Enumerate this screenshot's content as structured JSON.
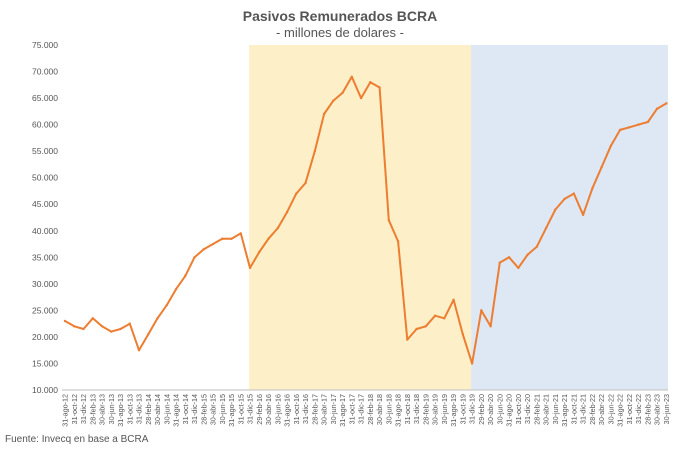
{
  "chart_data": {
    "type": "line",
    "title": "Pasivos Remunerados BCRA",
    "subtitle": "- millones de dolares -",
    "source": "Fuente: Invecq en base a BCRA",
    "ylim": [
      10000,
      75000
    ],
    "y_ticks": [
      "10.000",
      "15.000",
      "20.000",
      "25.000",
      "30.000",
      "35.000",
      "40.000",
      "45.000",
      "50.000",
      "55.000",
      "60.000",
      "65.000",
      "70.000",
      "75.000"
    ],
    "x_ticks": [
      "31-ago-12",
      "31-oct-12",
      "31-dic-12",
      "28-feb-13",
      "30-abr-13",
      "30-jun-13",
      "31-ago-13",
      "31-oct-13",
      "31-dic-13",
      "28-feb-14",
      "30-abr-14",
      "30-jun-14",
      "31-ago-14",
      "31-oct-14",
      "31-dic-14",
      "28-feb-15",
      "30-abr-15",
      "30-jun-15",
      "31-ago-15",
      "31-oct-15",
      "31-dic-15",
      "29-feb-16",
      "30-abr-16",
      "30-jun-16",
      "31-ago-16",
      "31-oct-16",
      "31-dic-16",
      "28-feb-17",
      "30-abr-17",
      "30-jun-17",
      "31-ago-17",
      "31-oct-17",
      "31-dic-17",
      "28-feb-18",
      "30-abr-18",
      "30-jun-18",
      "31-ago-18",
      "31-oct-18",
      "31-dic-18",
      "28-feb-19",
      "30-abr-19",
      "30-jun-19",
      "31-ago-19",
      "31-oct-19",
      "31-dic-19",
      "29-feb-20",
      "30-abr-20",
      "30-jun-20",
      "31-ago-20",
      "31-oct-20",
      "31-dic-20",
      "28-feb-21",
      "30-abr-21",
      "30-jun-21",
      "31-ago-21",
      "31-oct-21",
      "31-dic-21",
      "28-feb-22",
      "30-abr-22",
      "30-jun-22",
      "31-ago-22",
      "31-oct-22",
      "31-dic-22",
      "28-feb-23",
      "30-abr-23",
      "30-jun-23"
    ],
    "shaded_periods": [
      {
        "from": "31-dic-15",
        "to": "31-dic-19",
        "color": "#fdf0c8"
      },
      {
        "from": "31-dic-19",
        "to": "30-jun-23",
        "color": "#dde8f4"
      }
    ],
    "series": [
      {
        "color": "#ed7d31",
        "x": [
          "31-ago-12",
          "31-oct-12",
          "31-dic-12",
          "28-feb-13",
          "30-abr-13",
          "30-jun-13",
          "31-ago-13",
          "31-oct-13",
          "31-dic-13",
          "28-feb-14",
          "30-abr-14",
          "30-jun-14",
          "31-ago-14",
          "31-oct-14",
          "31-dic-14",
          "28-feb-15",
          "30-abr-15",
          "30-jun-15",
          "31-ago-15",
          "31-oct-15",
          "31-dic-15",
          "29-feb-16",
          "30-abr-16",
          "30-jun-16",
          "31-ago-16",
          "31-oct-16",
          "31-dic-16",
          "28-feb-17",
          "30-abr-17",
          "30-jun-17",
          "31-ago-17",
          "31-oct-17",
          "31-dic-17",
          "28-feb-18",
          "30-abr-18",
          "30-jun-18",
          "31-ago-18",
          "31-oct-18",
          "31-dic-18",
          "28-feb-19",
          "30-abr-19",
          "30-jun-19",
          "31-ago-19",
          "31-oct-19",
          "31-dic-19",
          "29-feb-20",
          "30-abr-20",
          "30-jun-20",
          "31-ago-20",
          "31-oct-20",
          "31-dic-20",
          "28-feb-21",
          "30-abr-21",
          "30-jun-21",
          "31-ago-21",
          "31-oct-21",
          "31-dic-21",
          "28-feb-22",
          "30-abr-22",
          "30-jun-22",
          "31-ago-22",
          "31-oct-22",
          "31-dic-22",
          "28-feb-23",
          "30-abr-23",
          "30-jun-23"
        ],
        "values": [
          23000,
          22000,
          21500,
          23500,
          22000,
          21000,
          21500,
          22500,
          17500,
          20500,
          23500,
          26000,
          29000,
          31500,
          35000,
          36500,
          37500,
          38500,
          38500,
          39500,
          33000,
          36000,
          38500,
          40500,
          43500,
          47000,
          49000,
          55000,
          62000,
          64500,
          66000,
          69000,
          65000,
          68000,
          67000,
          42000,
          38000,
          19500,
          21500,
          22000,
          24000,
          23500,
          27000,
          20500,
          15000,
          25000,
          22000,
          34000,
          35000,
          33000,
          35500,
          37000,
          40500,
          44000,
          46000,
          47000,
          43000,
          48000,
          52000,
          56000,
          59000,
          59500,
          60000,
          60500,
          63000,
          64000
        ]
      }
    ]
  }
}
